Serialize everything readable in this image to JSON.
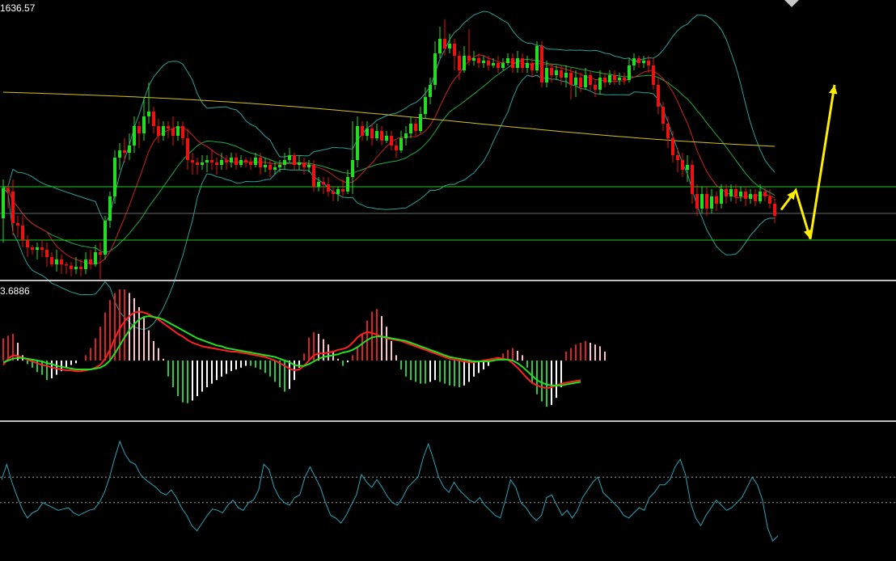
{
  "readouts": {
    "price_top": "1636.57",
    "macd_top": "3.6886"
  },
  "colors": {
    "background": "#000000",
    "bull_candle": "#22dd22",
    "bear_candle": "#ee1111",
    "bollinger": "#2aa198",
    "ma_fast": "#cc2222",
    "ma_mid": "#22aa44",
    "ma_slow": "#d6c21a",
    "level_lines": "#22cc22",
    "projection_arrow": "#ffee00",
    "macd_line": "#ff2020",
    "signal_line": "#20e020",
    "macd_hist_up": "#dd2020",
    "macd_hist_up_fade": "#ffc0c8",
    "macd_hist_down": "#22cc44",
    "macd_hist_down_fade": "#ffffff",
    "oscillator": "#2aa5b8",
    "separator": "#c0c0c0"
  },
  "chart_data": {
    "type": "candlestick",
    "panels": [
      "price",
      "macd",
      "oscillator"
    ],
    "price_axis_top": 1636.57,
    "candles": [
      [
        1610.0,
        1622.5,
        1600.0,
        1626.0
      ],
      [
        1622.5,
        1621.0,
        1614.0,
        1624.0
      ],
      [
        1621.0,
        1608.0,
        1603.0,
        1626.0
      ],
      [
        1608.0,
        1607.0,
        1602.0,
        1611.0
      ],
      [
        1607.0,
        1601.0,
        1598.0,
        1611.0
      ],
      [
        1601.0,
        1598.0,
        1594.0,
        1603.0
      ],
      [
        1598.0,
        1597.0,
        1595.0,
        1599.0
      ],
      [
        1597.0,
        1598.0,
        1593.0,
        1600.0
      ],
      [
        1598.0,
        1597.0,
        1594.0,
        1601.0
      ],
      [
        1597.0,
        1594.0,
        1590.0,
        1600.0
      ],
      [
        1594.0,
        1591.0,
        1590.0,
        1596.0
      ],
      [
        1591.0,
        1593.0,
        1588.0,
        1597.0
      ],
      [
        1593.0,
        1591.0,
        1587.0,
        1595.0
      ],
      [
        1591.0,
        1590.5,
        1587.0,
        1592.0
      ],
      [
        1590.5,
        1589.0,
        1586.0,
        1592.0
      ],
      [
        1589.0,
        1590.0,
        1587.0,
        1594.0
      ],
      [
        1590.0,
        1589.0,
        1586.0,
        1593.0
      ],
      [
        1589.0,
        1593.0,
        1587.0,
        1596.0
      ],
      [
        1593.0,
        1591.0,
        1589.0,
        1597.0
      ],
      [
        1591.0,
        1596.0,
        1590.0,
        1599.0
      ],
      [
        1596.0,
        1595.0,
        1585.0,
        1600.0
      ],
      [
        1595.0,
        1609.0,
        1593.0,
        1611.0
      ],
      [
        1609.0,
        1619.0,
        1606.0,
        1621.0
      ],
      [
        1619.0,
        1635.0,
        1616.0,
        1638.0
      ],
      [
        1635.0,
        1638.0,
        1630.0,
        1641.0
      ],
      [
        1638.0,
        1637.0,
        1633.0,
        1643.0
      ],
      [
        1637.0,
        1640.0,
        1634.0,
        1645.0
      ],
      [
        1640.0,
        1648.0,
        1637.0,
        1652.0
      ],
      [
        1648.0,
        1645.0,
        1639.0,
        1650.0
      ],
      [
        1645.0,
        1652.0,
        1642.0,
        1660.0
      ],
      [
        1652.0,
        1654.0,
        1649.0,
        1666.0
      ],
      [
        1654.0,
        1648.0,
        1645.0,
        1656.0
      ],
      [
        1648.0,
        1644.0,
        1641.0,
        1651.0
      ],
      [
        1644.0,
        1648.0,
        1642.0,
        1650.0
      ],
      [
        1648.0,
        1647.0,
        1643.0,
        1650.0
      ],
      [
        1647.0,
        1644.0,
        1640.0,
        1652.0
      ],
      [
        1644.0,
        1648.0,
        1642.0,
        1650.0
      ],
      [
        1648.0,
        1643.0,
        1640.0,
        1650.0
      ],
      [
        1643.0,
        1634.0,
        1630.0,
        1647.0
      ],
      [
        1634.0,
        1633.0,
        1628.0,
        1637.0
      ],
      [
        1633.0,
        1632.0,
        1628.0,
        1635.0
      ],
      [
        1632.0,
        1633.0,
        1630.0,
        1636.0
      ],
      [
        1633.0,
        1634.0,
        1629.0,
        1636.0
      ],
      [
        1634.0,
        1633.0,
        1630.0,
        1638.0
      ],
      [
        1633.0,
        1632.0,
        1628.0,
        1635.0
      ],
      [
        1632.0,
        1634.0,
        1630.0,
        1637.0
      ],
      [
        1634.0,
        1633.0,
        1630.0,
        1636.0
      ],
      [
        1633.0,
        1635.0,
        1631.0,
        1637.0
      ],
      [
        1635.0,
        1632.0,
        1630.0,
        1637.0
      ],
      [
        1632.0,
        1634.0,
        1631.0,
        1636.0
      ],
      [
        1634.0,
        1633.0,
        1631.0,
        1635.0
      ],
      [
        1633.0,
        1632.0,
        1630.0,
        1635.0
      ],
      [
        1632.0,
        1635.0,
        1631.0,
        1637.0
      ],
      [
        1635.0,
        1631.0,
        1628.0,
        1637.0
      ],
      [
        1631.0,
        1632.0,
        1629.0,
        1635.0
      ],
      [
        1632.0,
        1630.0,
        1627.0,
        1634.0
      ],
      [
        1630.0,
        1631.0,
        1628.0,
        1633.0
      ],
      [
        1631.0,
        1632.0,
        1629.0,
        1634.0
      ],
      [
        1632.0,
        1634.0,
        1630.0,
        1637.0
      ],
      [
        1634.0,
        1636.0,
        1633.0,
        1639.0
      ],
      [
        1636.0,
        1632.0,
        1630.0,
        1637.0
      ],
      [
        1632.0,
        1633.0,
        1630.0,
        1636.0
      ],
      [
        1633.0,
        1631.0,
        1628.0,
        1635.0
      ],
      [
        1631.0,
        1632.0,
        1629.0,
        1634.0
      ],
      [
        1632.0,
        1623.0,
        1621.0,
        1634.0
      ],
      [
        1623.0,
        1625.0,
        1621.0,
        1627.0
      ],
      [
        1625.0,
        1624.0,
        1620.0,
        1627.0
      ],
      [
        1624.0,
        1621.0,
        1619.0,
        1627.0
      ],
      [
        1621.0,
        1620.0,
        1617.0,
        1623.0
      ],
      [
        1620.0,
        1622.0,
        1617.0,
        1623.0
      ],
      [
        1622.0,
        1621.0,
        1619.0,
        1626.0
      ],
      [
        1621.0,
        1627.0,
        1620.0,
        1630.0
      ],
      [
        1627.0,
        1634.0,
        1620.0,
        1650.0
      ],
      [
        1634.0,
        1648.0,
        1631.0,
        1652.0
      ],
      [
        1648.0,
        1644.0,
        1642.0,
        1650.0
      ],
      [
        1644.0,
        1647.0,
        1642.0,
        1650.0
      ],
      [
        1647.0,
        1643.0,
        1640.0,
        1649.0
      ],
      [
        1643.0,
        1646.0,
        1642.0,
        1649.0
      ],
      [
        1646.0,
        1642.0,
        1640.0,
        1648.0
      ],
      [
        1642.0,
        1644.0,
        1641.0,
        1646.0
      ],
      [
        1644.0,
        1640.0,
        1638.0,
        1646.0
      ],
      [
        1640.0,
        1638.0,
        1635.0,
        1642.0
      ],
      [
        1638.0,
        1643.0,
        1637.0,
        1646.0
      ],
      [
        1643.0,
        1645.0,
        1640.0,
        1648.0
      ],
      [
        1645.0,
        1649.0,
        1643.0,
        1652.0
      ],
      [
        1649.0,
        1646.0,
        1644.0,
        1651.0
      ],
      [
        1646.0,
        1653.0,
        1645.0,
        1656.0
      ],
      [
        1653.0,
        1660.0,
        1651.0,
        1664.0
      ],
      [
        1660.0,
        1665.0,
        1657.0,
        1668.0
      ],
      [
        1665.0,
        1678.0,
        1663.0,
        1683.0
      ],
      [
        1678.0,
        1684.0,
        1676.0,
        1689.0
      ],
      [
        1684.0,
        1680.0,
        1677.0,
        1692.0
      ],
      [
        1680.0,
        1682.0,
        1678.0,
        1686.0
      ],
      [
        1682.0,
        1677.0,
        1671.0,
        1684.0
      ],
      [
        1677.0,
        1671.0,
        1667.0,
        1679.0
      ],
      [
        1671.0,
        1677.0,
        1670.0,
        1681.0
      ],
      [
        1677.0,
        1675.0,
        1673.0,
        1688.0
      ],
      [
        1675.0,
        1676.0,
        1673.0,
        1679.0
      ],
      [
        1676.0,
        1674.0,
        1672.0,
        1678.0
      ],
      [
        1674.0,
        1675.0,
        1672.0,
        1677.0
      ],
      [
        1675.0,
        1673.0,
        1671.0,
        1677.0
      ],
      [
        1673.0,
        1674.0,
        1672.0,
        1676.0
      ],
      [
        1674.0,
        1672.0,
        1670.0,
        1677.0
      ],
      [
        1672.0,
        1674.0,
        1671.0,
        1676.0
      ],
      [
        1674.0,
        1676.0,
        1673.0,
        1678.0
      ],
      [
        1676.0,
        1672.0,
        1670.0,
        1678.0
      ],
      [
        1672.0,
        1676.0,
        1670.0,
        1679.0
      ],
      [
        1676.0,
        1672.0,
        1670.0,
        1678.0
      ],
      [
        1672.0,
        1674.0,
        1670.0,
        1677.0
      ],
      [
        1674.0,
        1671.0,
        1668.0,
        1676.0
      ],
      [
        1671.0,
        1681.0,
        1670.0,
        1683.0
      ],
      [
        1681.0,
        1666.0,
        1664.0,
        1683.0
      ],
      [
        1666.0,
        1672.0,
        1664.0,
        1675.0
      ],
      [
        1672.0,
        1669.0,
        1666.0,
        1674.0
      ],
      [
        1669.0,
        1671.0,
        1667.0,
        1673.0
      ],
      [
        1671.0,
        1668.0,
        1665.0,
        1673.0
      ],
      [
        1668.0,
        1670.0,
        1664.0,
        1673.0
      ],
      [
        1670.0,
        1665.0,
        1659.0,
        1672.0
      ],
      [
        1665.0,
        1668.0,
        1660.0,
        1671.0
      ],
      [
        1668.0,
        1664.0,
        1662.0,
        1670.0
      ],
      [
        1664.0,
        1669.0,
        1663.0,
        1672.0
      ],
      [
        1669.0,
        1665.0,
        1663.0,
        1671.0
      ],
      [
        1665.0,
        1663.0,
        1660.0,
        1667.0
      ],
      [
        1663.0,
        1668.0,
        1661.0,
        1671.0
      ],
      [
        1668.0,
        1666.0,
        1664.0,
        1670.0
      ],
      [
        1666.0,
        1669.0,
        1665.0,
        1671.0
      ],
      [
        1669.0,
        1667.0,
        1665.0,
        1671.0
      ],
      [
        1667.0,
        1668.0,
        1665.0,
        1670.0
      ],
      [
        1668.0,
        1667.0,
        1665.0,
        1670.0
      ],
      [
        1667.0,
        1673.0,
        1666.0,
        1676.0
      ],
      [
        1673.0,
        1676.0,
        1671.0,
        1678.0
      ],
      [
        1676.0,
        1674.0,
        1672.0,
        1677.0
      ],
      [
        1674.0,
        1675.0,
        1672.0,
        1677.0
      ],
      [
        1675.0,
        1673.0,
        1670.0,
        1677.0
      ],
      [
        1673.0,
        1665.0,
        1663.0,
        1676.0
      ],
      [
        1665.0,
        1656.0,
        1653.0,
        1668.0
      ],
      [
        1656.0,
        1649.0,
        1646.0,
        1658.0
      ],
      [
        1649.0,
        1643.0,
        1639.0,
        1652.0
      ],
      [
        1643.0,
        1636.0,
        1633.0,
        1646.0
      ],
      [
        1636.0,
        1634.0,
        1629.0,
        1639.0
      ],
      [
        1634.0,
        1630.0,
        1627.0,
        1637.0
      ],
      [
        1630.0,
        1632.0,
        1625.0,
        1636.0
      ],
      [
        1632.0,
        1620.0,
        1616.0,
        1634.0
      ],
      [
        1620.0,
        1614.0,
        1611.0,
        1624.0
      ],
      [
        1614.0,
        1620.0,
        1612.0,
        1623.0
      ],
      [
        1620.0,
        1614.0,
        1611.0,
        1623.0
      ],
      [
        1614.0,
        1619.0,
        1612.0,
        1622.0
      ],
      [
        1619.0,
        1616.0,
        1613.0,
        1621.0
      ],
      [
        1616.0,
        1622.0,
        1614.0,
        1624.0
      ],
      [
        1622.0,
        1619.0,
        1616.0,
        1624.0
      ],
      [
        1619.0,
        1622.0,
        1617.0,
        1624.0
      ],
      [
        1622.0,
        1619.0,
        1616.0,
        1624.0
      ],
      [
        1619.0,
        1621.0,
        1617.0,
        1623.0
      ],
      [
        1621.0,
        1618.0,
        1615.0,
        1623.0
      ],
      [
        1618.0,
        1620.0,
        1616.0,
        1622.0
      ],
      [
        1620.0,
        1617.0,
        1615.0,
        1622.0
      ],
      [
        1617.0,
        1621.0,
        1616.0,
        1624.0
      ],
      [
        1621.0,
        1619.0,
        1617.0,
        1623.0
      ],
      [
        1619.0,
        1616.0,
        1614.0,
        1622.0
      ],
      [
        1616.0,
        1611.0,
        1608.0,
        1618.0
      ]
    ],
    "horizontal_levels": [
      1623.0,
      1612.0,
      1601.0
    ],
    "projection_arrow": [
      [
        1613.5,
        0
      ],
      [
        1621.5,
        3
      ],
      [
        1601.5,
        6
      ],
      [
        1665.0,
        11
      ]
    ],
    "macd_line": [
      -0.5,
      0.2,
      0.6,
      0.5,
      0.3,
      0.1,
      -0.1,
      -0.3,
      -0.5,
      -0.6,
      -0.8,
      -0.9,
      -1.0,
      -1.1,
      -1.1,
      -1.2,
      -1.2,
      -1.1,
      -1.0,
      -0.8,
      -0.5,
      0.2,
      1.2,
      2.5,
      3.6,
      4.4,
      5.0,
      5.4,
      5.5,
      5.4,
      5.2,
      4.9,
      4.6,
      4.2,
      3.8,
      3.4,
      3.0,
      2.7,
      2.3,
      2.0,
      1.8,
      1.6,
      1.5,
      1.4,
      1.3,
      1.2,
      1.1,
      1.0,
      1.0,
      0.9,
      0.8,
      0.7,
      0.6,
      0.5,
      0.4,
      0.2,
      0.0,
      -0.3,
      -0.6,
      -0.9,
      -1.1,
      -1.0,
      -0.6,
      0.0,
      0.6,
      0.8,
      0.8,
      0.9,
      1.0,
      1.2,
      1.3,
      1.5,
      2.0,
      2.6,
      3.0,
      3.2,
      3.1,
      2.9,
      2.7,
      2.5,
      2.4,
      2.3,
      2.2,
      2.0,
      1.8,
      1.6,
      1.4,
      1.2,
      1.0,
      0.8,
      0.6,
      0.4,
      0.2,
      0.1,
      0.0,
      -0.1,
      -0.2,
      -0.2,
      -0.1,
      0.0,
      0.1,
      0.2,
      0.3,
      0.2,
      0.1,
      -0.3,
      -0.8,
      -1.4,
      -2.0,
      -2.5,
      -2.8,
      -3.0,
      -3.1,
      -3.0,
      -2.8,
      -2.6,
      -2.5,
      -2.4,
      -2.3,
      -2.2
    ],
    "signal_line": [
      -0.2,
      0.0,
      0.2,
      0.3,
      0.3,
      0.2,
      0.1,
      0.0,
      -0.1,
      -0.3,
      -0.4,
      -0.6,
      -0.7,
      -0.8,
      -0.9,
      -1.0,
      -1.0,
      -1.0,
      -1.0,
      -0.9,
      -0.8,
      -0.5,
      0.0,
      0.8,
      1.7,
      2.6,
      3.4,
      4.1,
      4.6,
      4.9,
      5.0,
      4.9,
      4.8,
      4.6,
      4.3,
      4.0,
      3.7,
      3.4,
      3.1,
      2.8,
      2.5,
      2.3,
      2.1,
      1.9,
      1.7,
      1.6,
      1.4,
      1.3,
      1.2,
      1.1,
      1.0,
      0.9,
      0.8,
      0.7,
      0.6,
      0.5,
      0.4,
      0.2,
      0.0,
      -0.2,
      -0.5,
      -0.6,
      -0.6,
      -0.4,
      -0.1,
      0.2,
      0.4,
      0.5,
      0.6,
      0.7,
      0.9,
      1.0,
      1.2,
      1.5,
      1.9,
      2.3,
      2.6,
      2.7,
      2.7,
      2.6,
      2.5,
      2.4,
      2.3,
      2.2,
      2.0,
      1.8,
      1.6,
      1.4,
      1.2,
      1.0,
      0.8,
      0.6,
      0.4,
      0.3,
      0.2,
      0.1,
      0.0,
      -0.1,
      -0.1,
      -0.1,
      -0.1,
      0.0,
      0.1,
      0.1,
      0.1,
      0.0,
      -0.3,
      -0.7,
      -1.2,
      -1.7,
      -2.2,
      -2.5,
      -2.7,
      -2.8,
      -2.8,
      -2.8,
      -2.7,
      -2.6,
      -2.5,
      -2.4
    ],
    "histogram": [
      2.5,
      2.8,
      3.0,
      2.0,
      0.6,
      -0.4,
      -0.8,
      -1.3,
      -1.6,
      -2.2,
      -2.0,
      -1.6,
      -1.2,
      -0.8,
      -0.5,
      -0.3,
      0.0,
      0.6,
      1.4,
      2.5,
      3.8,
      5.4,
      6.8,
      7.6,
      8.0,
      8.0,
      7.6,
      7.0,
      6.0,
      4.8,
      3.4,
      2.2,
      1.4,
      0.2,
      -1.8,
      -3.0,
      -4.0,
      -4.7,
      -4.8,
      -4.5,
      -4.0,
      -3.5,
      -3.0,
      -2.6,
      -2.2,
      -1.8,
      -1.5,
      -1.2,
      -1.0,
      -0.8,
      -0.6,
      -0.6,
      -0.8,
      -1.0,
      -1.4,
      -1.8,
      -2.4,
      -3.0,
      -3.5,
      -3.2,
      -2.2,
      -0.8,
      0.8,
      2.6,
      3.2,
      3.0,
      2.4,
      1.8,
      1.0,
      0.2,
      -0.6,
      -0.2,
      0.6,
      1.6,
      3.0,
      4.5,
      5.5,
      5.8,
      5.0,
      3.8,
      2.2,
      0.6,
      -1.0,
      -1.8,
      -2.2,
      -2.4,
      -2.6,
      -2.6,
      -2.4,
      -2.2,
      -2.4,
      -2.6,
      -2.8,
      -2.9,
      -3.0,
      -2.8,
      -2.4,
      -1.8,
      -1.4,
      -1.0,
      -0.6,
      0.0,
      0.4,
      0.8,
      1.2,
      1.4,
      1.1,
      0.6,
      -0.8,
      -2.6,
      -3.8,
      -4.6,
      -5.2,
      -5.0,
      -4.2,
      -3.0,
      1.0,
      1.4,
      1.8,
      2.0,
      2.2,
      2.0,
      1.8,
      1.6,
      1.0
    ],
    "oscillator": [
      58,
      70,
      56,
      45,
      35,
      28,
      32,
      34,
      40,
      38,
      36,
      34,
      35,
      36,
      32,
      30,
      32,
      34,
      35,
      40,
      48,
      60,
      75,
      88,
      78,
      72,
      70,
      62,
      58,
      55,
      52,
      48,
      46,
      50,
      44,
      36,
      30,
      22,
      18,
      24,
      30,
      35,
      34,
      32,
      38,
      42,
      36,
      34,
      40,
      42,
      50,
      70,
      66,
      52,
      44,
      40,
      38,
      44,
      46,
      60,
      68,
      60,
      52,
      40,
      30,
      28,
      24,
      30,
      38,
      46,
      62,
      56,
      52,
      58,
      52,
      45,
      40,
      38,
      44,
      52,
      56,
      60,
      75,
      86,
      74,
      60,
      52,
      48,
      56,
      50,
      46,
      42,
      40,
      44,
      38,
      34,
      30,
      28,
      42,
      58,
      52,
      40,
      36,
      30,
      26,
      30,
      44,
      46,
      38,
      30,
      34,
      28,
      34,
      44,
      50,
      56,
      60,
      48,
      44,
      40,
      36,
      30,
      28,
      32,
      36,
      34,
      44,
      48,
      54,
      54,
      58,
      68,
      74,
      62,
      40,
      28,
      22,
      30,
      36,
      42,
      38,
      34,
      36,
      40,
      44,
      52,
      60,
      54,
      42,
      20,
      10,
      14
    ],
    "oscillator_levels": [
      60,
      40
    ]
  }
}
